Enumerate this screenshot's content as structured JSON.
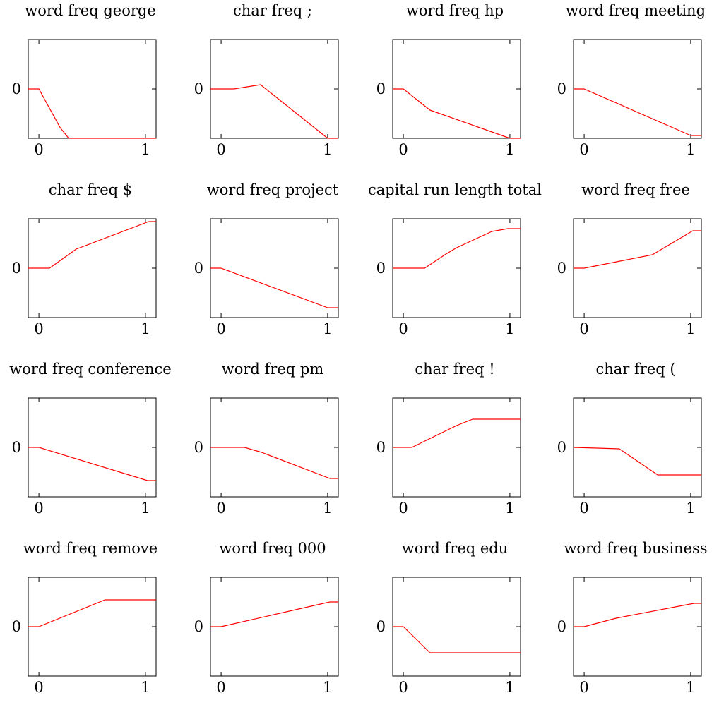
{
  "chart_data": [
    {
      "type": "line",
      "title": "word freq george",
      "x": [
        -0.1,
        0,
        0.2,
        0.28,
        1.1
      ],
      "y": [
        0,
        0,
        -0.55,
        -0.7,
        -0.7
      ],
      "xticks": [
        0,
        1
      ],
      "yticks": [
        0
      ],
      "ylim": [
        -0.7,
        0.7
      ],
      "line_color": "#ff0000"
    },
    {
      "type": "line",
      "title": "char freq ;",
      "x": [
        -0.1,
        0.12,
        0.37,
        1.0,
        1.1
      ],
      "y": [
        0,
        0,
        0.06,
        -0.7,
        -0.7
      ],
      "xticks": [
        0,
        1
      ],
      "yticks": [
        0
      ],
      "ylim": [
        -0.7,
        0.7
      ],
      "line_color": "#ff0000"
    },
    {
      "type": "line",
      "title": "word freq hp",
      "x": [
        -0.1,
        0,
        0.25,
        1.0,
        1.1
      ],
      "y": [
        0,
        0,
        -0.3,
        -0.7,
        -0.7
      ],
      "xticks": [
        0,
        1
      ],
      "yticks": [
        0
      ],
      "ylim": [
        -0.7,
        0.7
      ],
      "line_color": "#ff0000"
    },
    {
      "type": "line",
      "title": "word freq meeting",
      "x": [
        -0.1,
        0,
        1.0,
        1.1
      ],
      "y": [
        0,
        0,
        -0.66,
        -0.66
      ],
      "xticks": [
        0,
        1
      ],
      "yticks": [
        0
      ],
      "ylim": [
        -0.7,
        0.7
      ],
      "line_color": "#ff0000"
    },
    {
      "type": "line",
      "title": "char freq $",
      "x": [
        -0.1,
        0.1,
        0.35,
        1.03,
        1.1
      ],
      "y": [
        0,
        0,
        0.27,
        0.66,
        0.66
      ],
      "xticks": [
        0,
        1
      ],
      "yticks": [
        0
      ],
      "ylim": [
        -0.7,
        0.7
      ],
      "line_color": "#ff0000"
    },
    {
      "type": "line",
      "title": "word freq project",
      "x": [
        -0.1,
        0,
        1.0,
        1.1
      ],
      "y": [
        0,
        0,
        -0.56,
        -0.56
      ],
      "xticks": [
        0,
        1
      ],
      "yticks": [
        0
      ],
      "ylim": [
        -0.7,
        0.7
      ],
      "line_color": "#ff0000"
    },
    {
      "type": "line",
      "title": "capital run length total",
      "x": [
        -0.1,
        0.2,
        0.4,
        0.5,
        0.83,
        0.98,
        1.1
      ],
      "y": [
        0,
        0,
        0.2,
        0.29,
        0.52,
        0.56,
        0.56
      ],
      "xticks": [
        0,
        1
      ],
      "yticks": [
        0
      ],
      "ylim": [
        -0.7,
        0.7
      ],
      "line_color": "#ff0000"
    },
    {
      "type": "line",
      "title": "word freq free",
      "x": [
        -0.1,
        0,
        0.64,
        1.02,
        1.1
      ],
      "y": [
        0,
        0,
        0.19,
        0.53,
        0.53
      ],
      "xticks": [
        0,
        1
      ],
      "yticks": [
        0
      ],
      "ylim": [
        -0.7,
        0.7
      ],
      "line_color": "#ff0000"
    },
    {
      "type": "line",
      "title": "word freq conference",
      "x": [
        -0.1,
        0,
        1.02,
        1.1
      ],
      "y": [
        0,
        0,
        -0.47,
        -0.47
      ],
      "xticks": [
        0,
        1
      ],
      "yticks": [
        0
      ],
      "ylim": [
        -0.7,
        0.7
      ],
      "line_color": "#ff0000"
    },
    {
      "type": "line",
      "title": "word freq pm",
      "x": [
        -0.1,
        0.22,
        0.38,
        1.02,
        1.1
      ],
      "y": [
        0,
        0,
        -0.07,
        -0.44,
        -0.44
      ],
      "xticks": [
        0,
        1
      ],
      "yticks": [
        0
      ],
      "ylim": [
        -0.7,
        0.7
      ],
      "line_color": "#ff0000"
    },
    {
      "type": "line",
      "title": "char freq !",
      "x": [
        -0.1,
        0.08,
        0.5,
        0.65,
        1.1
      ],
      "y": [
        0,
        0,
        0.31,
        0.4,
        0.4
      ],
      "xticks": [
        0,
        1
      ],
      "yticks": [
        0
      ],
      "ylim": [
        -0.7,
        0.7
      ],
      "line_color": "#ff0000"
    },
    {
      "type": "line",
      "title": "char freq (",
      "x": [
        -0.1,
        0.33,
        0.69,
        1.1
      ],
      "y": [
        0,
        -0.02,
        -0.39,
        -0.39
      ],
      "xticks": [
        0,
        1
      ],
      "yticks": [
        0
      ],
      "ylim": [
        -0.7,
        0.7
      ],
      "line_color": "#ff0000"
    },
    {
      "type": "line",
      "title": "word freq remove",
      "x": [
        -0.1,
        0,
        0.62,
        1.1
      ],
      "y": [
        0,
        0,
        0.38,
        0.38
      ],
      "xticks": [
        0,
        1
      ],
      "yticks": [
        0
      ],
      "ylim": [
        -0.7,
        0.7
      ],
      "line_color": "#ff0000"
    },
    {
      "type": "line",
      "title": "word freq 000",
      "x": [
        -0.1,
        0,
        1.02,
        1.1
      ],
      "y": [
        0,
        0,
        0.35,
        0.35
      ],
      "xticks": [
        0,
        1
      ],
      "yticks": [
        0
      ],
      "ylim": [
        -0.7,
        0.7
      ],
      "line_color": "#ff0000"
    },
    {
      "type": "line",
      "title": "word freq edu",
      "x": [
        -0.1,
        0,
        0.25,
        1.1
      ],
      "y": [
        0,
        0,
        -0.37,
        -0.37
      ],
      "xticks": [
        0,
        1
      ],
      "yticks": [
        0
      ],
      "ylim": [
        -0.7,
        0.7
      ],
      "line_color": "#ff0000"
    },
    {
      "type": "line",
      "title": "word freq business",
      "x": [
        -0.1,
        0,
        0.3,
        1.03,
        1.1
      ],
      "y": [
        0,
        0,
        0.12,
        0.33,
        0.33
      ],
      "xticks": [
        0,
        1
      ],
      "yticks": [
        0
      ],
      "ylim": [
        -0.7,
        0.7
      ],
      "line_color": "#ff0000"
    }
  ]
}
